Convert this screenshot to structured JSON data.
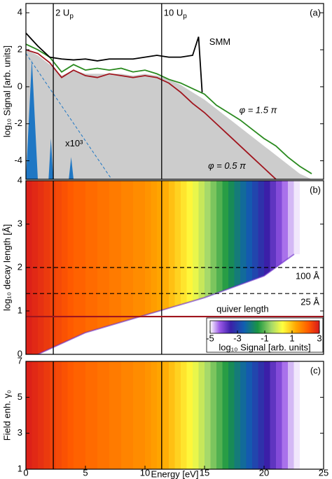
{
  "chart_data": [
    {
      "type": "line",
      "tag": "(a)",
      "ylabel": "log₁₀ Signal [arb. units]",
      "xlim": [
        0,
        25
      ],
      "ylim": [
        -5,
        4.5
      ],
      "yticks": [
        -4,
        -2,
        0,
        2,
        4
      ],
      "vlines": [
        {
          "value": 2.3,
          "label": "2 U",
          "sub": "p"
        },
        {
          "value": 11.4,
          "label": "10 U",
          "sub": "p"
        }
      ],
      "annotation": "x10³",
      "series": [
        {
          "color": "#cccccc",
          "fill": true,
          "x": [
            0,
            1,
            2,
            3,
            4,
            5,
            6,
            7,
            8,
            9,
            10,
            11,
            12,
            13,
            14,
            15,
            16,
            17,
            18,
            19,
            20,
            21,
            22,
            23,
            24
          ],
          "values": [
            2.0,
            1.7,
            1.2,
            0.6,
            0.9,
            0.7,
            0.7,
            0.7,
            0.7,
            0.6,
            0.7,
            0.6,
            0.4,
            0.1,
            -0.3,
            -0.7,
            -1.2,
            -1.7,
            -2.2,
            -2.7,
            -3.2,
            -3.7,
            -4.2,
            -4.7,
            -5
          ]
        },
        {
          "color": "#1f77c4",
          "fill": true,
          "x": [
            0,
            0.5,
            1,
            1.9,
            2.1,
            2.3,
            3.6,
            3.8,
            4.0
          ],
          "values": [
            -5,
            1.5,
            -5,
            -5,
            -2.8,
            -5,
            -5,
            -3.8,
            -5
          ]
        },
        {
          "color": "#1f77c4",
          "dash": true,
          "x": [
            0,
            7.2
          ],
          "values": [
            1.8,
            -5
          ]
        },
        {
          "name": "φ = 0.5 π",
          "color": "#a0151e",
          "x": [
            0,
            1,
            2,
            3,
            4,
            5,
            6,
            7,
            8,
            9,
            10,
            11,
            12,
            13,
            14,
            15,
            16,
            17,
            18,
            19,
            20,
            21
          ],
          "values": [
            2.0,
            1.8,
            1.3,
            0.5,
            0.9,
            0.6,
            0.5,
            0.7,
            0.6,
            0.5,
            0.6,
            0.5,
            0.2,
            -0.3,
            -0.9,
            -1.4,
            -2.0,
            -2.6,
            -3.2,
            -3.8,
            -4.4,
            -5.0
          ]
        },
        {
          "name": "φ = 1.5 π",
          "color": "#2a8a1f",
          "x": [
            0,
            1,
            2,
            3,
            4,
            5,
            6,
            7,
            8,
            9,
            10,
            11,
            12,
            13,
            14,
            15,
            16,
            17,
            18,
            19,
            20,
            21,
            22,
            23,
            24
          ],
          "values": [
            2.3,
            2.0,
            1.6,
            0.8,
            1.2,
            0.9,
            1.0,
            0.9,
            1.0,
            0.8,
            0.9,
            0.7,
            0.4,
            0.2,
            -0.1,
            -0.4,
            -1.0,
            -1.4,
            -1.8,
            -2.3,
            -2.8,
            -3.2,
            -3.8,
            -4.3,
            -4.7
          ]
        },
        {
          "name": "SMM",
          "color": "#000000",
          "x": [
            0,
            1,
            2,
            3,
            4,
            5,
            6,
            7,
            8,
            9,
            10,
            11,
            12,
            13,
            14,
            14.5,
            14.8
          ],
          "values": [
            2.9,
            2.2,
            1.6,
            1.5,
            1.45,
            1.5,
            1.4,
            1.5,
            1.5,
            1.5,
            1.6,
            1.7,
            1.6,
            1.6,
            1.7,
            2.7,
            -0.3
          ]
        }
      ]
    },
    {
      "type": "heatmap",
      "tag": "(b)",
      "ylabel": "log₁₀ decay length [Å]",
      "xlim": [
        0,
        25
      ],
      "ylim": [
        0,
        4
      ],
      "yticks": [
        0,
        1,
        2,
        3,
        4
      ],
      "vlines": [
        {
          "value": 2.3
        },
        {
          "value": 11.4
        }
      ],
      "hlines": [
        {
          "value": 2,
          "label": "100 Å",
          "dash": true,
          "color": "#000000"
        },
        {
          "value": 1.4,
          "label": "25 Å",
          "dash": true,
          "color": "#000000"
        },
        {
          "value": 0.87,
          "label": "quiver length",
          "color": "#a0151e"
        }
      ],
      "x": [
        0,
        0.5,
        1,
        1.5,
        2,
        2.5,
        3,
        3.5,
        4,
        4.5,
        5,
        5.5,
        6,
        6.5,
        7,
        7.5,
        8,
        8.5,
        9,
        9.5,
        10,
        10.5,
        11,
        11.5,
        12,
        12.5,
        13,
        13.5,
        14,
        14.5,
        15,
        15.5,
        16,
        16.5,
        17,
        17.5,
        18,
        18.5,
        19,
        19.5,
        20,
        20.5,
        21,
        21.5,
        22,
        22.5,
        23
      ],
      "z": [
        2.9,
        2.8,
        2.7,
        2.6,
        2.5,
        2.4,
        2.3,
        2.2,
        2.1,
        2.1,
        2.0,
        2.0,
        1.9,
        1.9,
        1.8,
        1.8,
        1.7,
        1.7,
        1.6,
        1.6,
        1.5,
        1.4,
        1.3,
        1.2,
        1.0,
        0.8,
        0.6,
        0.4,
        0.1,
        -0.2,
        -0.5,
        -0.8,
        -1.1,
        -1.4,
        -1.7,
        -2.0,
        -2.3,
        -2.6,
        -2.9,
        -3.2,
        -3.5,
        -3.8,
        -4.1,
        -4.4,
        -4.7,
        -4.9,
        -5.0
      ],
      "clim": [
        -5,
        3
      ],
      "cticks": [
        -5,
        -3,
        -1,
        1,
        3
      ],
      "colorbar_label": "log₁₀ Signal [arb. units]",
      "colormap": [
        {
          "value": -5,
          "color": "#ffffff"
        },
        {
          "value": -4.3,
          "color": "#9b59e8"
        },
        {
          "value": -3.5,
          "color": "#3b1fa8"
        },
        {
          "value": -2.5,
          "color": "#1060b0"
        },
        {
          "value": -1.5,
          "color": "#1a9641"
        },
        {
          "value": -0.5,
          "color": "#a6d96a"
        },
        {
          "value": 0.3,
          "color": "#ffff40"
        },
        {
          "value": 1.3,
          "color": "#ffa500"
        },
        {
          "value": 2.2,
          "color": "#ff5a00"
        },
        {
          "value": 3,
          "color": "#d7191c"
        }
      ]
    },
    {
      "type": "heatmap",
      "tag": "(c)",
      "ylabel": "Field enh. γ₀",
      "xlabel": "Energy [eV]",
      "xlim": [
        0,
        25
      ],
      "ylim": [
        1,
        7
      ],
      "yticks": [
        1,
        3,
        5,
        7
      ],
      "xticks": [
        0,
        5,
        10,
        15,
        20,
        25
      ],
      "vlines": [
        {
          "value": 2.3
        },
        {
          "value": 11.4
        }
      ],
      "x": [
        0,
        0.5,
        1,
        1.5,
        2,
        2.5,
        3,
        3.5,
        4,
        4.5,
        5,
        5.5,
        6,
        6.5,
        7,
        7.5,
        8,
        8.5,
        9,
        9.5,
        10,
        10.5,
        11,
        11.5,
        12,
        12.5,
        13,
        13.5,
        14,
        14.5,
        15,
        15.5,
        16,
        16.5,
        17,
        17.5,
        18,
        18.5,
        19,
        19.5,
        20,
        20.5,
        21,
        21.5,
        22,
        22.5,
        23
      ],
      "z": [
        2.9,
        2.8,
        2.7,
        2.6,
        2.5,
        2.4,
        2.3,
        2.2,
        2.1,
        2.1,
        2.0,
        2.0,
        1.9,
        1.9,
        1.8,
        1.8,
        1.7,
        1.7,
        1.6,
        1.6,
        1.5,
        1.4,
        1.3,
        1.2,
        1.0,
        0.8,
        0.6,
        0.4,
        0.1,
        -0.2,
        -0.5,
        -0.8,
        -1.1,
        -1.4,
        -1.7,
        -2.0,
        -2.3,
        -2.6,
        -2.9,
        -3.2,
        -3.5,
        -3.8,
        -4.1,
        -4.4,
        -4.7,
        -4.9,
        -5.0
      ],
      "clim": [
        -5,
        3
      ],
      "colormap": [
        {
          "value": -5,
          "color": "#ffffff"
        },
        {
          "value": -4.3,
          "color": "#9b59e8"
        },
        {
          "value": -3.5,
          "color": "#3b1fa8"
        },
        {
          "value": -2.5,
          "color": "#1060b0"
        },
        {
          "value": -1.5,
          "color": "#1a9641"
        },
        {
          "value": -0.5,
          "color": "#a6d96a"
        },
        {
          "value": 0.3,
          "color": "#ffff40"
        },
        {
          "value": 1.3,
          "color": "#ffa500"
        },
        {
          "value": 2.2,
          "color": "#ff5a00"
        },
        {
          "value": 3,
          "color": "#d7191c"
        }
      ]
    }
  ]
}
